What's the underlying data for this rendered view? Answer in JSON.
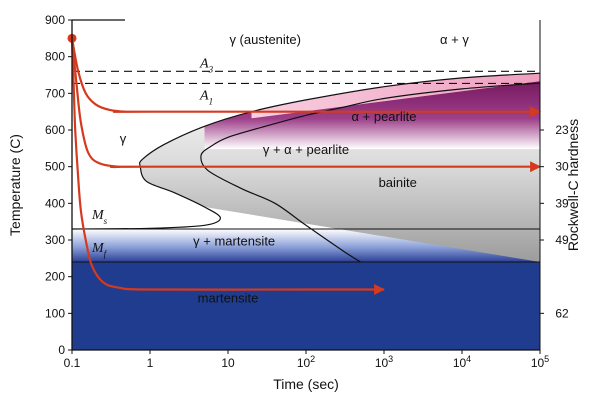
{
  "chart_data": {
    "type": "ttt_diagram",
    "xlabel": "Time (sec)",
    "ylabel": "Temperature (C)",
    "y2label": "Rockwell-C hardness",
    "xscale": "log",
    "xlim": [
      0.1,
      100000
    ],
    "ylim": [
      0,
      900
    ],
    "x_ticks": [
      {
        "v": 0.1,
        "base": "0.1",
        "exp": ""
      },
      {
        "v": 1,
        "base": "1",
        "exp": ""
      },
      {
        "v": 10,
        "base": "10",
        "exp": ""
      },
      {
        "v": 100,
        "base": "10",
        "exp": "2"
      },
      {
        "v": 1000,
        "base": "10",
        "exp": "3"
      },
      {
        "v": 10000,
        "base": "10",
        "exp": "4"
      },
      {
        "v": 100000,
        "base": "10",
        "exp": "5"
      }
    ],
    "y_ticks": [
      0,
      100,
      200,
      300,
      400,
      500,
      600,
      700,
      800,
      900
    ],
    "hardness_ticks": [
      {
        "temp": 600,
        "label": "23"
      },
      {
        "temp": 500,
        "label": "30"
      },
      {
        "temp": 400,
        "label": "39"
      },
      {
        "temp": 300,
        "label": "49"
      },
      {
        "temp": 100,
        "label": "62"
      }
    ],
    "reference_lines": [
      {
        "name": "A",
        "sub": "3",
        "temp": 760
      },
      {
        "name": "A",
        "sub": "1",
        "temp": 727
      },
      {
        "name": "M",
        "sub": "s",
        "temp": 330
      },
      {
        "name": "M",
        "sub": "f",
        "temp": 240
      }
    ],
    "transformation_curves": [
      {
        "name": "start",
        "points": [
          [
            100000,
            755
          ],
          [
            10000,
            742
          ],
          [
            1000,
            718
          ],
          [
            100,
            682
          ],
          [
            20,
            650
          ],
          [
            5,
            610
          ],
          [
            1.5,
            560
          ],
          [
            0.8,
            520
          ],
          [
            0.75,
            500
          ],
          [
            0.9,
            460
          ],
          [
            2,
            430
          ],
          [
            5,
            390
          ],
          [
            8,
            360
          ],
          [
            5,
            340
          ],
          [
            1,
            332
          ],
          [
            0.1,
            330
          ]
        ]
      },
      {
        "name": "finish",
        "points": [
          [
            100000,
            728
          ],
          [
            10000,
            712
          ],
          [
            1000,
            686
          ],
          [
            300,
            662
          ],
          [
            100,
            640
          ],
          [
            30,
            610
          ],
          [
            10,
            580
          ],
          [
            6,
            555
          ],
          [
            4.5,
            530
          ],
          [
            5.5,
            490
          ],
          [
            15,
            440
          ],
          [
            40,
            400
          ],
          [
            100,
            340
          ],
          [
            300,
            270
          ],
          [
            500,
            240
          ]
        ]
      }
    ],
    "cooling_paths": [
      {
        "points": [
          [
            0.1,
            850
          ],
          [
            0.12,
            760
          ],
          [
            0.15,
            700
          ],
          [
            0.2,
            670
          ],
          [
            0.3,
            655
          ],
          [
            0.5,
            650
          ],
          [
            1,
            650
          ],
          [
            100000,
            650
          ]
        ]
      },
      {
        "points": [
          [
            0.1,
            850
          ],
          [
            0.115,
            720
          ],
          [
            0.13,
            620
          ],
          [
            0.16,
            540
          ],
          [
            0.22,
            510
          ],
          [
            0.4,
            500
          ],
          [
            1,
            500
          ],
          [
            100000,
            500
          ]
        ]
      },
      {
        "points": [
          [
            0.1,
            850
          ],
          [
            0.105,
            720
          ],
          [
            0.11,
            600
          ],
          [
            0.12,
            470
          ],
          [
            0.13,
            380
          ],
          [
            0.15,
            300
          ],
          [
            0.18,
            230
          ],
          [
            0.25,
            185
          ],
          [
            0.4,
            170
          ],
          [
            1,
            165
          ],
          [
            100,
            165
          ],
          [
            1000,
            165
          ]
        ]
      }
    ],
    "phase_labels": [
      {
        "text": "γ (austenite)",
        "t": 30,
        "temp": 835
      },
      {
        "text": "α + γ",
        "t": 8000,
        "temp": 835
      },
      {
        "text": "α + pearlite",
        "t": 1000,
        "temp": 625
      },
      {
        "text": "γ + α + pearlite",
        "t": 100,
        "temp": 535
      },
      {
        "text": "γ",
        "t": 0.45,
        "temp": 565
      },
      {
        "text": "bainite",
        "t": 1500,
        "temp": 445
      },
      {
        "text": "γ + martensite",
        "t": 12,
        "temp": 285
      },
      {
        "text": "martensite",
        "t": 10,
        "temp": 130
      }
    ],
    "start_point": {
      "t": 0.1,
      "temp": 850
    },
    "colors": {
      "martensite": "#1f3c8f",
      "gamma_martensite_top": "#ffffff",
      "gamma_martensite_bottom": "#2b3f96",
      "bainite_top": "#ffffff",
      "bainite_bottom": "#9c9c9c",
      "pearlite_outer_light": "#f4b9cd",
      "pearlite_dark": "#7d1d6a",
      "cooling_path": "#d53a1f",
      "line": "#111111"
    }
  }
}
